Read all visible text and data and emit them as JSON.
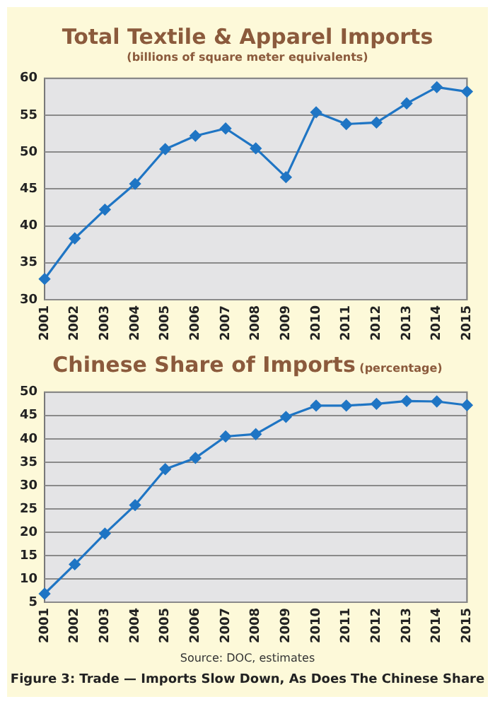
{
  "chart_data": [
    {
      "type": "line",
      "title": "Total Textile & Apparel Imports",
      "subtitle": "(billions of square meter equivalents)",
      "categories": [
        "2001",
        "2002",
        "2003",
        "2004",
        "2005",
        "2006",
        "2007",
        "2008",
        "2009",
        "2010",
        "2011",
        "2012",
        "2013",
        "2014",
        "2015"
      ],
      "series": [
        {
          "color": "#1f75c4",
          "values": [
            32.8,
            38.3,
            42.2,
            45.7,
            50.4,
            52.2,
            53.2,
            50.5,
            46.6,
            55.4,
            53.8,
            54.0,
            56.6,
            58.8,
            58.2
          ]
        }
      ],
      "ylim": [
        30,
        60
      ],
      "yticks": [
        30,
        35,
        40,
        45,
        50,
        55,
        60
      ],
      "grid": "y",
      "marker": "diamond",
      "legend": false
    },
    {
      "type": "line",
      "title": "Chinese Share of Imports",
      "subtitle": "(percentage)",
      "categories": [
        "2001",
        "2002",
        "2003",
        "2004",
        "2005",
        "2006",
        "2007",
        "2008",
        "2009",
        "2010",
        "2011",
        "2012",
        "2013",
        "2014",
        "2015"
      ],
      "series": [
        {
          "color": "#1f75c4",
          "values": [
            6.8,
            13.1,
            19.7,
            25.8,
            33.5,
            35.9,
            40.5,
            41.0,
            44.7,
            47.1,
            47.1,
            47.5,
            48.1,
            48.0,
            47.2
          ]
        }
      ],
      "ylim": [
        5,
        50
      ],
      "yticks": [
        5,
        10,
        15,
        20,
        25,
        30,
        35,
        40,
        45,
        50
      ],
      "grid": "y",
      "marker": "diamond",
      "legend": false,
      "annotations": [
        "Source: DOC, estimates",
        "Figure 3: Trade — Imports Slow Down, As Does The Chinese Share"
      ]
    }
  ]
}
